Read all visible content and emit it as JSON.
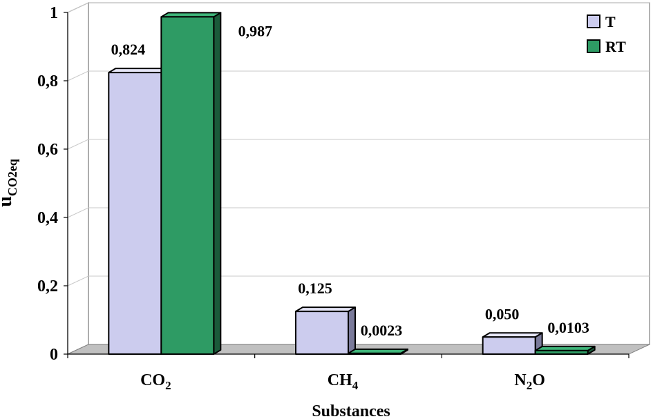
{
  "chart_data": {
    "type": "bar",
    "categories": [
      "CO2",
      "CH4",
      "N2O"
    ],
    "category_labels": [
      {
        "base": "CO",
        "sub": "2",
        "tail": ""
      },
      {
        "base": "CH",
        "sub": "4",
        "tail": ""
      },
      {
        "base": "N",
        "sub": "2",
        "tail": "O"
      }
    ],
    "series": [
      {
        "name": "T",
        "values": [
          0.824,
          0.125,
          0.05
        ],
        "labels": [
          "0,824",
          "0,125",
          "0,050"
        ],
        "color": "#ccccee",
        "side_color": "#7a7a9a",
        "top_color": "#e6e6f7"
      },
      {
        "name": "RT",
        "values": [
          0.987,
          0.0023,
          0.0103
        ],
        "labels": [
          "0,987",
          "0,0023",
          "0,0103"
        ],
        "color": "#2e9b64",
        "side_color": "#1b5a3a",
        "top_color": "#3fb57a"
      }
    ],
    "ylim": [
      0,
      1
    ],
    "yticks": [
      0,
      0.2,
      0.4,
      0.6,
      0.8,
      1
    ],
    "ytick_labels": [
      "0",
      "0,2",
      "0,4",
      "0,6",
      "0,8",
      "1"
    ],
    "ylabel": {
      "base": "u",
      "sub": "CO2eq"
    },
    "xlabel": "Substances",
    "grid": true,
    "legend_position": "top-right",
    "style": "3d-clustered-bar"
  }
}
